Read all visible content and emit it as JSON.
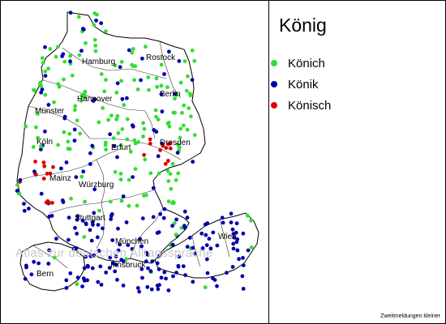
{
  "title": "König",
  "legend": [
    {
      "label": "Könich",
      "color": "#33dd33"
    },
    {
      "label": "Könik",
      "color": "#0000aa"
    },
    {
      "label": "Könisch",
      "color": "#dd0000"
    }
  ],
  "cities": [
    "Hamburg",
    "Rostock",
    "Hannover",
    "Berlin",
    "Münster",
    "Köln",
    "Erfurt",
    "Dresden",
    "Mainz",
    "Würzburg",
    "Stuttgart",
    "München",
    "Wien",
    "Innsbruck",
    "Bern"
  ],
  "watermark": "Atlas zur deutschen Alltagssprache",
  "footnote": "Zweitmeldungen kleiner"
}
